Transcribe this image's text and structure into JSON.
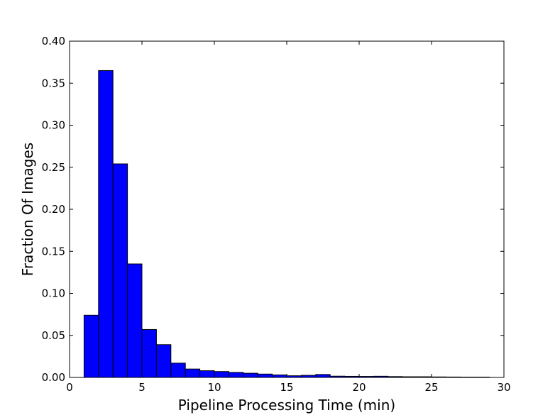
{
  "chart_data": {
    "type": "bar",
    "histogram": true,
    "xlabel": "Pipeline Processing Time (min)",
    "ylabel": "Fraction Of Images",
    "xlim": [
      0,
      30
    ],
    "ylim": [
      0,
      0.4
    ],
    "xticks": [
      "0",
      "5",
      "10",
      "15",
      "20",
      "25",
      "30"
    ],
    "yticks": [
      "0.00",
      "0.05",
      "0.10",
      "0.15",
      "0.20",
      "0.25",
      "0.30",
      "0.35",
      "0.40"
    ],
    "grid": false,
    "bar_color": "#0000ff",
    "edge_color": "#000000",
    "bins": [
      {
        "x0": 1,
        "x1": 2,
        "value": 0.074
      },
      {
        "x0": 2,
        "x1": 3,
        "value": 0.365
      },
      {
        "x0": 3,
        "x1": 4,
        "value": 0.254
      },
      {
        "x0": 4,
        "x1": 5,
        "value": 0.135
      },
      {
        "x0": 5,
        "x1": 6,
        "value": 0.057
      },
      {
        "x0": 6,
        "x1": 7,
        "value": 0.039
      },
      {
        "x0": 7,
        "x1": 8,
        "value": 0.017
      },
      {
        "x0": 8,
        "x1": 9,
        "value": 0.01
      },
      {
        "x0": 9,
        "x1": 10,
        "value": 0.008
      },
      {
        "x0": 10,
        "x1": 11,
        "value": 0.007
      },
      {
        "x0": 11,
        "x1": 12,
        "value": 0.006
      },
      {
        "x0": 12,
        "x1": 13,
        "value": 0.005
      },
      {
        "x0": 13,
        "x1": 14,
        "value": 0.004
      },
      {
        "x0": 14,
        "x1": 15,
        "value": 0.003
      },
      {
        "x0": 15,
        "x1": 16,
        "value": 0.002
      },
      {
        "x0": 16,
        "x1": 17,
        "value": 0.0025
      },
      {
        "x0": 17,
        "x1": 18,
        "value": 0.0035
      },
      {
        "x0": 18,
        "x1": 19,
        "value": 0.0015
      },
      {
        "x0": 19,
        "x1": 20,
        "value": 0.0013
      },
      {
        "x0": 20,
        "x1": 21,
        "value": 0.0012
      },
      {
        "x0": 21,
        "x1": 22,
        "value": 0.0014
      },
      {
        "x0": 22,
        "x1": 23,
        "value": 0.001
      },
      {
        "x0": 23,
        "x1": 24,
        "value": 0.0008
      },
      {
        "x0": 24,
        "x1": 25,
        "value": 0.0008
      },
      {
        "x0": 25,
        "x1": 26,
        "value": 0.0006
      },
      {
        "x0": 26,
        "x1": 27,
        "value": 0.0005
      },
      {
        "x0": 27,
        "x1": 28,
        "value": 0.0004
      },
      {
        "x0": 28,
        "x1": 29,
        "value": 0.0004
      }
    ]
  }
}
